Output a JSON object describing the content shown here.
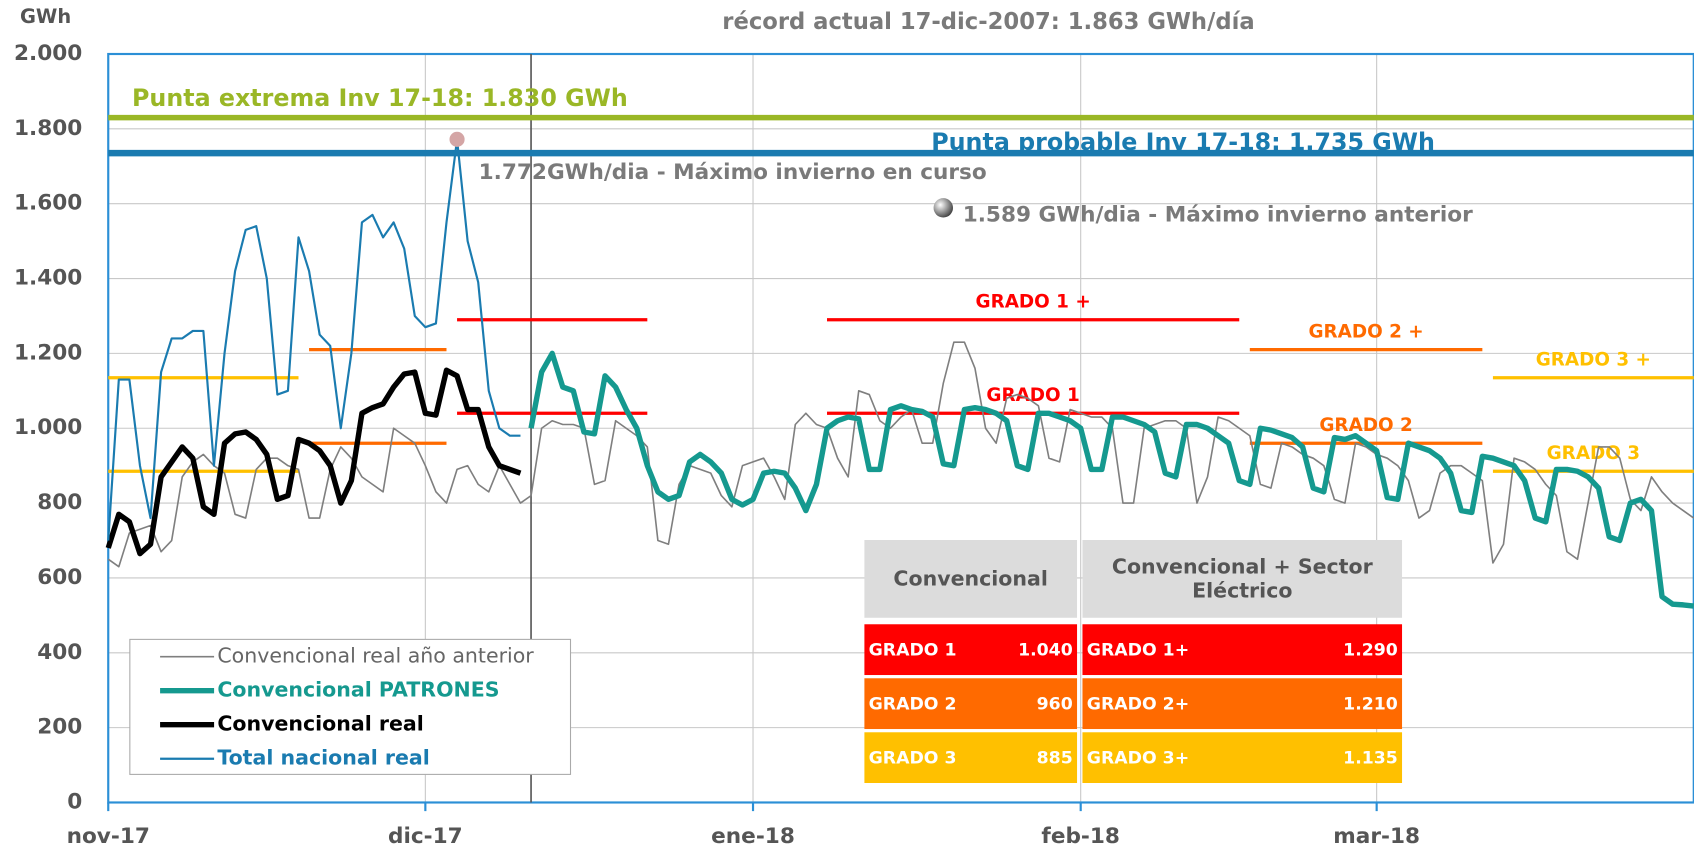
{
  "chart_data": {
    "type": "line",
    "y_label": "GWh",
    "subtitle": "récord actual 17-dic-2007:  1.863 GWh/día",
    "xlim": [
      0,
      150
    ],
    "xticks": [
      {
        "value": 0,
        "label": "nov-17"
      },
      {
        "value": 30,
        "label": "dic-17"
      },
      {
        "value": 61,
        "label": "ene-18"
      },
      {
        "value": 92,
        "label": "feb-18"
      },
      {
        "value": 120,
        "label": "mar-18"
      }
    ],
    "ylim": [
      0,
      2000
    ],
    "yticks": [
      0,
      200,
      400,
      600,
      800,
      {
        "value": 1000,
        "label": "1.000"
      },
      {
        "value": 1200,
        "label": "1.200"
      },
      {
        "value": 1400,
        "label": "1.400"
      },
      {
        "value": 1600,
        "label": "1.600"
      },
      {
        "value": 1800,
        "label": "1.800"
      },
      {
        "value": 2000,
        "label": "2.000"
      }
    ],
    "grid": true,
    "vline": 40,
    "series": [
      {
        "name": "Convencional real año anterior",
        "color": "#7f7f7f",
        "x": [
          0,
          1,
          2,
          3,
          4,
          5,
          6,
          7,
          8,
          9,
          10,
          11,
          12,
          13,
          14,
          15,
          16,
          17,
          18,
          19,
          20,
          21,
          22,
          23,
          24,
          25,
          26,
          27,
          28,
          29,
          30,
          31,
          32,
          33,
          34,
          35,
          36,
          37,
          38,
          39,
          40,
          41,
          42,
          43,
          44,
          45,
          46,
          47,
          48,
          49,
          50,
          51,
          52,
          53,
          54,
          55,
          56,
          57,
          58,
          59,
          60,
          61,
          62,
          63,
          64,
          65,
          66,
          67,
          68,
          69,
          70,
          71,
          72,
          73,
          74,
          75,
          76,
          77,
          78,
          79,
          80,
          81,
          82,
          83,
          84,
          85,
          86,
          87,
          88,
          89,
          90,
          91,
          92,
          93,
          94,
          95,
          96,
          97,
          98,
          99,
          100,
          101,
          102,
          103,
          104,
          105,
          106,
          107,
          108,
          109,
          110,
          111,
          112,
          113,
          114,
          115,
          116,
          117,
          118,
          119,
          120,
          121,
          122,
          123,
          124,
          125,
          126,
          127,
          128,
          129,
          130,
          131,
          132,
          133,
          134,
          135,
          136,
          137,
          138,
          139,
          140,
          141,
          142,
          143,
          144,
          145,
          146,
          147,
          148,
          149,
          150
        ],
        "values": [
          650,
          630,
          720,
          730,
          740,
          670,
          700,
          870,
          910,
          930,
          900,
          880,
          770,
          760,
          890,
          920,
          920,
          900,
          890,
          760,
          760,
          890,
          950,
          920,
          870,
          850,
          830,
          1000,
          980,
          960,
          900,
          830,
          800,
          890,
          900,
          850,
          830,
          900,
          850,
          800,
          820,
          1000,
          1020,
          1010,
          1010,
          1000,
          850,
          860,
          1020,
          1000,
          980,
          950,
          700,
          690,
          850,
          900,
          890,
          880,
          820,
          790,
          900,
          910,
          920,
          870,
          810,
          1010,
          1040,
          1010,
          1000,
          920,
          870,
          1100,
          1090,
          1020,
          1000,
          1030,
          1050,
          960,
          960,
          1120,
          1230,
          1230,
          1160,
          1000,
          960,
          1080,
          1090,
          1080,
          1060,
          920,
          910,
          1050,
          1040,
          1030,
          1030,
          1000,
          800,
          800,
          1000,
          1010,
          1020,
          1020,
          1000,
          800,
          870,
          1030,
          1020,
          1000,
          980,
          850,
          840,
          960,
          950,
          930,
          920,
          900,
          810,
          800,
          960,
          950,
          930,
          920,
          900,
          860,
          760,
          780,
          880,
          900,
          900,
          880,
          860,
          640,
          690,
          920,
          910,
          890,
          850,
          820,
          670,
          650,
          800,
          950,
          950,
          920,
          810,
          780,
          870,
          830,
          800,
          780,
          760
        ]
      },
      {
        "name": "Convencional PATRONES",
        "color": "#15998f",
        "x": [
          40,
          41,
          42,
          43,
          44,
          45,
          46,
          47,
          48,
          49,
          50,
          51,
          52,
          53,
          54,
          55,
          56,
          57,
          58,
          59,
          60,
          61,
          62,
          63,
          64,
          65,
          66,
          67,
          68,
          69,
          70,
          71,
          72,
          73,
          74,
          75,
          76,
          77,
          78,
          79,
          80,
          81,
          82,
          83,
          84,
          85,
          86,
          87,
          88,
          89,
          90,
          91,
          92,
          93,
          94,
          95,
          96,
          97,
          98,
          99,
          100,
          101,
          102,
          103,
          104,
          105,
          106,
          107,
          108,
          109,
          110,
          111,
          112,
          113,
          114,
          115,
          116,
          117,
          118,
          119,
          120,
          121,
          122,
          123,
          124,
          125,
          126,
          127,
          128,
          129,
          130,
          131,
          132,
          133,
          134,
          135,
          136,
          137,
          138,
          139,
          140,
          141,
          142,
          143,
          144,
          145,
          146,
          147,
          148,
          149,
          150
        ],
        "values": [
          1000,
          1150,
          1200,
          1110,
          1100,
          990,
          985,
          1140,
          1110,
          1050,
          1000,
          900,
          830,
          810,
          820,
          910,
          930,
          910,
          880,
          810,
          795,
          810,
          880,
          885,
          880,
          840,
          780,
          850,
          1000,
          1020,
          1030,
          1025,
          890,
          890,
          1050,
          1060,
          1050,
          1045,
          1030,
          905,
          900,
          1050,
          1055,
          1050,
          1040,
          1020,
          900,
          890,
          1040,
          1040,
          1030,
          1020,
          1000,
          890,
          890,
          1030,
          1030,
          1020,
          1010,
          990,
          880,
          870,
          1010,
          1010,
          1000,
          980,
          960,
          860,
          850,
          1000,
          995,
          985,
          975,
          950,
          840,
          830,
          975,
          970,
          980,
          960,
          940,
          815,
          810,
          960,
          950,
          940,
          920,
          880,
          780,
          775,
          925,
          920,
          910,
          900,
          860,
          760,
          750,
          890,
          890,
          885,
          870,
          840,
          710,
          700,
          800,
          810,
          780,
          550,
          530,
          528,
          525
        ]
      },
      {
        "name": "Convencional real",
        "color": "#000000",
        "x": [
          0,
          1,
          2,
          3,
          4,
          5,
          6,
          7,
          8,
          9,
          10,
          11,
          12,
          13,
          14,
          15,
          16,
          17,
          18,
          19,
          20,
          21,
          22,
          23,
          24,
          25,
          26,
          27,
          28,
          29,
          30,
          31,
          32,
          33,
          34,
          35,
          36,
          37,
          38,
          39
        ],
        "values": [
          680,
          770,
          750,
          665,
          690,
          870,
          910,
          950,
          920,
          790,
          770,
          960,
          985,
          990,
          970,
          930,
          810,
          820,
          970,
          960,
          940,
          900,
          800,
          860,
          1040,
          1055,
          1065,
          1110,
          1145,
          1150,
          1040,
          1035,
          1155,
          1140,
          1050,
          1050,
          950,
          900,
          890,
          880
        ]
      },
      {
        "name": "Total nacional real",
        "color": "#1a7bb0",
        "x": [
          0,
          1,
          2,
          3,
          4,
          5,
          6,
          7,
          8,
          9,
          10,
          11,
          12,
          13,
          14,
          15,
          16,
          17,
          18,
          19,
          20,
          21,
          22,
          23,
          24,
          25,
          26,
          27,
          28,
          29,
          30,
          31,
          32,
          33,
          34,
          35,
          36,
          37,
          38,
          39
        ],
        "values": [
          700,
          1130,
          1130,
          900,
          760,
          1150,
          1240,
          1240,
          1260,
          1260,
          900,
          1200,
          1420,
          1530,
          1540,
          1400,
          1090,
          1100,
          1510,
          1420,
          1250,
          1220,
          1000,
          1200,
          1550,
          1570,
          1510,
          1550,
          1480,
          1300,
          1270,
          1280,
          1550,
          1772,
          1500,
          1390,
          1100,
          1000,
          980,
          980
        ]
      }
    ],
    "reference_lines": [
      {
        "label": "Punta extrema Inv 17-18: 1.830 GWh",
        "value": 1830,
        "color": "#9ab726"
      },
      {
        "label": "Punta probable Inv 17-18: 1.735 GWh",
        "value": 1735,
        "color": "#1a7bb0"
      }
    ],
    "thresholds": [
      {
        "value": 1135,
        "from": 0,
        "to": 18,
        "color": "#ffc000"
      },
      {
        "value": 885,
        "from": 0,
        "to": 18,
        "color": "#ffc000"
      },
      {
        "value": 1210,
        "from": 19,
        "to": 32,
        "color": "#ff6a00"
      },
      {
        "value": 960,
        "from": 19,
        "to": 32,
        "color": "#ff6a00"
      },
      {
        "value": 1290,
        "from": 33,
        "to": 51,
        "color": "#ff0000"
      },
      {
        "value": 1040,
        "from": 33,
        "to": 51,
        "color": "#ff0000"
      },
      {
        "label": "GRADO 1 +",
        "value": 1290,
        "from": 68,
        "to": 107,
        "color": "#ff0000"
      },
      {
        "label": "GRADO 1",
        "value": 1040,
        "from": 68,
        "to": 107,
        "color": "#ff0000"
      },
      {
        "label": "GRADO 2 +",
        "value": 1210,
        "from": 108,
        "to": 130,
        "color": "#ff6a00"
      },
      {
        "label": "GRADO 2",
        "value": 960,
        "from": 108,
        "to": 130,
        "color": "#ff6a00"
      },
      {
        "label": "GRADO 3 +",
        "value": 1135,
        "from": 131,
        "to": 150,
        "color": "#ffc000"
      },
      {
        "label": "GRADO 3",
        "value": 885,
        "from": 131,
        "to": 150,
        "color": "#ffc000"
      }
    ],
    "annotations": [
      {
        "text": "1.772GWh/dia - Máximo invierno en curso",
        "x": 33,
        "y": 1772,
        "color": "#d4a5a5"
      },
      {
        "text": "1.589 GWh/dia - Máximo invierno anterior",
        "x": 79,
        "y": 1589,
        "color": "#b0b0b0"
      }
    ],
    "table": {
      "header": [
        "Convencional",
        "Convencional + Sector Eléctrico"
      ],
      "rows": [
        [
          "GRADO 1",
          "1.040",
          "GRADO 1+",
          "1.290"
        ],
        [
          "GRADO 2",
          "960",
          "GRADO 2+",
          "1.210"
        ],
        [
          "GRADO 3",
          "885",
          "GRADO 3+",
          "1.135"
        ]
      ],
      "row_colors": [
        "#ff0000",
        "#ff6a00",
        "#ffc000"
      ]
    }
  }
}
